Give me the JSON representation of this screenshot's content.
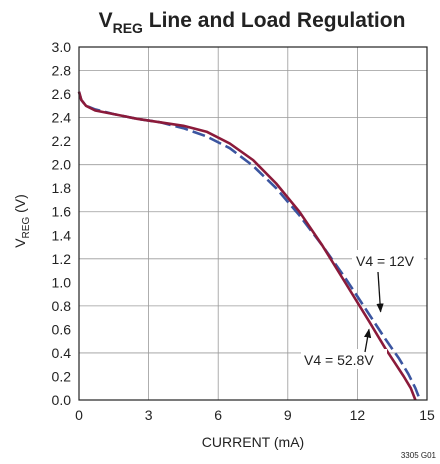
{
  "chart_data": {
    "type": "line",
    "title": {
      "prefix": "V",
      "subscript": "REG",
      "rest": " Line and Load Regulation"
    },
    "xlabel": "CURRENT (mA)",
    "ylabel": {
      "prefix": "V",
      "subscript": "REG",
      "rest": " (V)"
    },
    "xlim": [
      0,
      15
    ],
    "ylim": [
      0,
      3.0
    ],
    "xticks": [
      0,
      3,
      6,
      9,
      12,
      15
    ],
    "yticks": [
      0.0,
      0.2,
      0.4,
      0.6,
      0.8,
      1.0,
      1.2,
      1.4,
      1.6,
      1.8,
      2.0,
      2.2,
      2.4,
      2.6,
      2.8,
      3.0
    ],
    "grid": true,
    "figure_id": "3305 G01",
    "series": [
      {
        "name": "V4 = 12V",
        "color": "#3b55a0",
        "style": "dashed",
        "x": [
          0,
          0.1,
          0.3,
          0.7,
          1.5,
          2.5,
          3.5,
          4.5,
          5.5,
          6.5,
          7.5,
          8.5,
          9.5,
          10.5,
          11.5,
          12.5,
          13.2,
          13.8,
          14.2,
          14.5,
          14.7
        ],
        "y": [
          2.62,
          2.55,
          2.5,
          2.47,
          2.43,
          2.39,
          2.36,
          2.31,
          2.24,
          2.14,
          1.99,
          1.8,
          1.57,
          1.31,
          1.03,
          0.73,
          0.52,
          0.35,
          0.22,
          0.1,
          0.0
        ]
      },
      {
        "name": "V4 = 52.8V",
        "color": "#8b1a3a",
        "style": "solid",
        "x": [
          0,
          0.1,
          0.3,
          0.7,
          1.5,
          2.5,
          3.5,
          4.5,
          5.5,
          6.5,
          7.5,
          8.5,
          9.5,
          10.5,
          11.5,
          12.5,
          13.2,
          13.6,
          14.0,
          14.3,
          14.5
        ],
        "y": [
          2.62,
          2.55,
          2.5,
          2.46,
          2.43,
          2.39,
          2.36,
          2.33,
          2.28,
          2.18,
          2.04,
          1.84,
          1.6,
          1.31,
          0.99,
          0.67,
          0.44,
          0.32,
          0.2,
          0.1,
          0.0
        ]
      }
    ],
    "annotations": [
      {
        "text": "V4 = 12V",
        "series": 0,
        "arrow_to": [
          13.0,
          0.75
        ]
      },
      {
        "text": "V4 = 52.8V",
        "series": 1,
        "arrow_to": [
          12.5,
          0.6
        ]
      }
    ]
  }
}
